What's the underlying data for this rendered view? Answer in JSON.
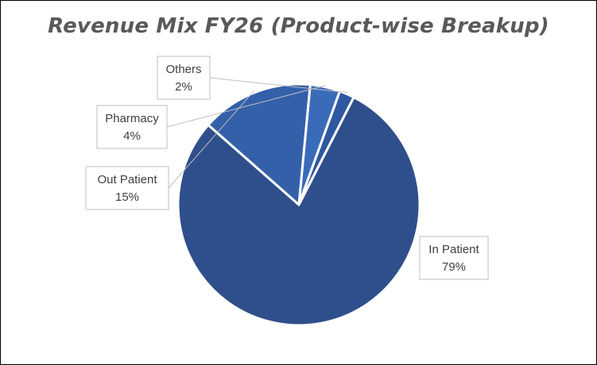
{
  "chart_data": {
    "type": "pie",
    "title": "Revenue Mix FY26 (Product-wise Breakup)",
    "slices": [
      {
        "label": "In Patient",
        "value": 79,
        "display": "79%",
        "color": "#2f4f8c"
      },
      {
        "label": "Out Patient",
        "value": 15,
        "display": "15%",
        "color": "#3360a9"
      },
      {
        "label": "Pharmacy",
        "value": 4,
        "display": "4%",
        "color": "#3a6bb8"
      },
      {
        "label": "Others",
        "value": 2,
        "display": "2%",
        "color": "#2e58a0"
      }
    ],
    "legend": "none",
    "data_labels": "callout"
  }
}
